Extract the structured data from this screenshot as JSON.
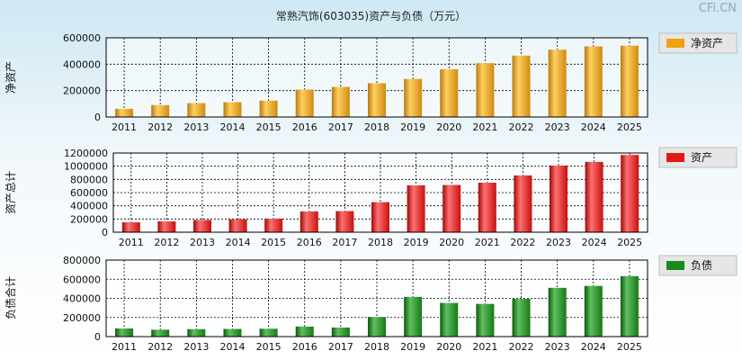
{
  "title": "常熟汽饰(603035)资产与负债（万元）",
  "watermark": "CFi.CN",
  "chart_data": [
    {
      "type": "bar",
      "ylabel": "净资产",
      "legend": "净资产",
      "legend_placement": "right",
      "color": "#f0a010",
      "grid": true,
      "categories": [
        "2011",
        "2012",
        "2013",
        "2014",
        "2015",
        "2016",
        "2017",
        "2018",
        "2019",
        "2020",
        "2021",
        "2022",
        "2023",
        "2024",
        "2025"
      ],
      "values": [
        62000,
        90000,
        105000,
        112000,
        124000,
        208000,
        228000,
        256000,
        288000,
        362000,
        408000,
        465000,
        510000,
        535000,
        540000
      ],
      "ylim": [
        0,
        600000
      ],
      "yticks": [
        "0",
        "200000",
        "400000",
        "600000"
      ]
    },
    {
      "type": "bar",
      "ylabel": "资产总计",
      "legend": "资产",
      "legend_placement": "right",
      "color": "#e01818",
      "grid": true,
      "categories": [
        "2011",
        "2012",
        "2013",
        "2014",
        "2015",
        "2016",
        "2017",
        "2018",
        "2019",
        "2020",
        "2021",
        "2022",
        "2023",
        "2024",
        "2025"
      ],
      "values": [
        150000,
        165000,
        185000,
        195000,
        205000,
        315000,
        320000,
        455000,
        710000,
        715000,
        750000,
        860000,
        1010000,
        1065000,
        1170000
      ],
      "ylim": [
        0,
        1200000
      ],
      "yticks": [
        "0",
        "200000",
        "400000",
        "600000",
        "800000",
        "1000000",
        "1200000"
      ]
    },
    {
      "type": "bar",
      "ylabel": "负债合计",
      "legend": "负债",
      "legend_placement": "right",
      "color": "#1a8a1a",
      "grid": true,
      "categories": [
        "2011",
        "2012",
        "2013",
        "2014",
        "2015",
        "2016",
        "2017",
        "2018",
        "2019",
        "2020",
        "2021",
        "2022",
        "2023",
        "2024",
        "2025"
      ],
      "values": [
        85000,
        72000,
        78000,
        80000,
        82000,
        105000,
        95000,
        205000,
        415000,
        352000,
        342000,
        395000,
        510000,
        530000,
        632000
      ],
      "ylim": [
        0,
        800000
      ],
      "yticks": [
        "0",
        "200000",
        "400000",
        "600000",
        "800000"
      ]
    }
  ]
}
